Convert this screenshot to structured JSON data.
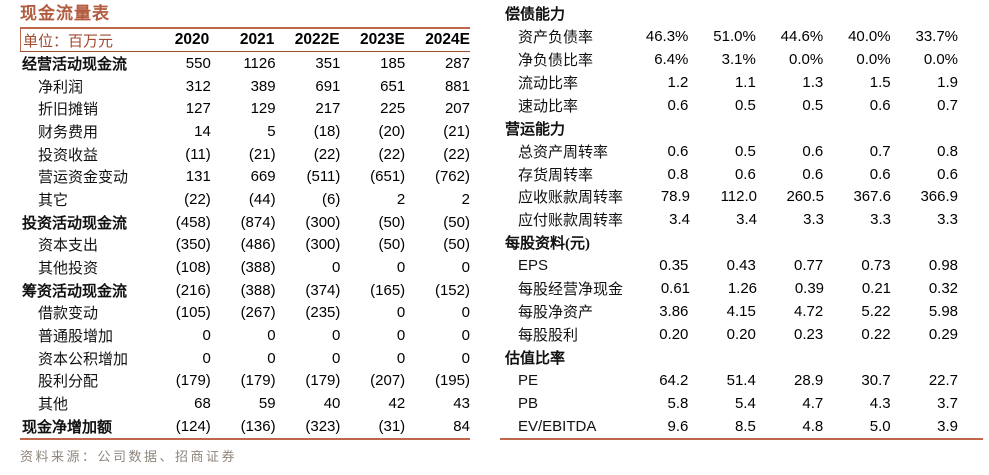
{
  "title": "现金流量表",
  "left_table": {
    "unit_label": "单位：百万元",
    "years": [
      "2020",
      "2021",
      "2022E",
      "2023E",
      "2024E"
    ],
    "rows": [
      {
        "label": "经营活动现金流",
        "bold": true,
        "values": [
          "550",
          "1126",
          "351",
          "185",
          "287"
        ]
      },
      {
        "label": "净利润",
        "bold": false,
        "values": [
          "312",
          "389",
          "691",
          "651",
          "881"
        ]
      },
      {
        "label": "折旧摊销",
        "bold": false,
        "values": [
          "127",
          "129",
          "217",
          "225",
          "207"
        ]
      },
      {
        "label": "财务费用",
        "bold": false,
        "values": [
          "14",
          "5",
          "(18)",
          "(20)",
          "(21)"
        ]
      },
      {
        "label": "投资收益",
        "bold": false,
        "values": [
          "(11)",
          "(21)",
          "(22)",
          "(22)",
          "(22)"
        ]
      },
      {
        "label": "营运资金变动",
        "bold": false,
        "values": [
          "131",
          "669",
          "(511)",
          "(651)",
          "(762)"
        ]
      },
      {
        "label": "其它",
        "bold": false,
        "values": [
          "(22)",
          "(44)",
          "(6)",
          "2",
          "2"
        ]
      },
      {
        "label": "投资活动现金流",
        "bold": true,
        "values": [
          "(458)",
          "(874)",
          "(300)",
          "(50)",
          "(50)"
        ]
      },
      {
        "label": "资本支出",
        "bold": false,
        "values": [
          "(350)",
          "(486)",
          "(300)",
          "(50)",
          "(50)"
        ]
      },
      {
        "label": "其他投资",
        "bold": false,
        "values": [
          "(108)",
          "(388)",
          "0",
          "0",
          "0"
        ]
      },
      {
        "label": "筹资活动现金流",
        "bold": true,
        "values": [
          "(216)",
          "(388)",
          "(374)",
          "(165)",
          "(152)"
        ]
      },
      {
        "label": "借款变动",
        "bold": false,
        "values": [
          "(105)",
          "(267)",
          "(235)",
          "0",
          "0"
        ]
      },
      {
        "label": "普通股增加",
        "bold": false,
        "values": [
          "0",
          "0",
          "0",
          "0",
          "0"
        ]
      },
      {
        "label": "资本公积增加",
        "bold": false,
        "values": [
          "0",
          "0",
          "0",
          "0",
          "0"
        ]
      },
      {
        "label": "股利分配",
        "bold": false,
        "values": [
          "(179)",
          "(179)",
          "(179)",
          "(207)",
          "(195)"
        ]
      },
      {
        "label": "其他",
        "bold": false,
        "values": [
          "68",
          "59",
          "40",
          "42",
          "43"
        ]
      },
      {
        "label": "现金净增加额",
        "bold": true,
        "values": [
          "(124)",
          "(136)",
          "(323)",
          "(31)",
          "84"
        ]
      }
    ]
  },
  "right_table": {
    "rows": [
      {
        "label": "偿债能力",
        "bold": true,
        "values": []
      },
      {
        "label": "资产负债率",
        "bold": false,
        "values": [
          "46.3%",
          "51.0%",
          "44.6%",
          "40.0%",
          "33.7%"
        ]
      },
      {
        "label": "净负债比率",
        "bold": false,
        "values": [
          "6.4%",
          "3.1%",
          "0.0%",
          "0.0%",
          "0.0%"
        ]
      },
      {
        "label": "流动比率",
        "bold": false,
        "values": [
          "1.2",
          "1.1",
          "1.3",
          "1.5",
          "1.9"
        ]
      },
      {
        "label": "速动比率",
        "bold": false,
        "values": [
          "0.6",
          "0.5",
          "0.5",
          "0.6",
          "0.7"
        ]
      },
      {
        "label": "营运能力",
        "bold": true,
        "values": []
      },
      {
        "label": "总资产周转率",
        "bold": false,
        "values": [
          "0.6",
          "0.5",
          "0.6",
          "0.7",
          "0.8"
        ]
      },
      {
        "label": "存货周转率",
        "bold": false,
        "values": [
          "0.8",
          "0.6",
          "0.6",
          "0.6",
          "0.6"
        ]
      },
      {
        "label": "应收账款周转率",
        "bold": false,
        "values": [
          "78.9",
          "112.0",
          "260.5",
          "367.6",
          "366.9"
        ]
      },
      {
        "label": "应付账款周转率",
        "bold": false,
        "values": [
          "3.4",
          "3.4",
          "3.3",
          "3.3",
          "3.3"
        ]
      },
      {
        "label": "每股资料(元)",
        "bold": true,
        "values": []
      },
      {
        "label": "EPS",
        "bold": false,
        "values": [
          "0.35",
          "0.43",
          "0.77",
          "0.73",
          "0.98"
        ]
      },
      {
        "label": "每股经营净现金",
        "bold": false,
        "values": [
          "0.61",
          "1.26",
          "0.39",
          "0.21",
          "0.32"
        ]
      },
      {
        "label": "每股净资产",
        "bold": false,
        "values": [
          "3.86",
          "4.15",
          "4.72",
          "5.22",
          "5.98"
        ]
      },
      {
        "label": "每股股利",
        "bold": false,
        "values": [
          "0.20",
          "0.20",
          "0.23",
          "0.22",
          "0.29"
        ]
      },
      {
        "label": "估值比率",
        "bold": true,
        "values": []
      },
      {
        "label": "PE",
        "bold": false,
        "values": [
          "64.2",
          "51.4",
          "28.9",
          "30.7",
          "22.7"
        ]
      },
      {
        "label": "PB",
        "bold": false,
        "values": [
          "5.8",
          "5.4",
          "4.7",
          "4.3",
          "3.7"
        ]
      },
      {
        "label": "EV/EBITDA",
        "bold": false,
        "values": [
          "9.6",
          "8.5",
          "4.8",
          "5.0",
          "3.9"
        ]
      }
    ]
  },
  "footer": {
    "source": "资料来源：公司数据、招商证券"
  },
  "colors": {
    "accent_border": "#c0664a",
    "title_text": "#b35c40",
    "unit_text": "#a34a30",
    "source_text": "#8f867c"
  }
}
